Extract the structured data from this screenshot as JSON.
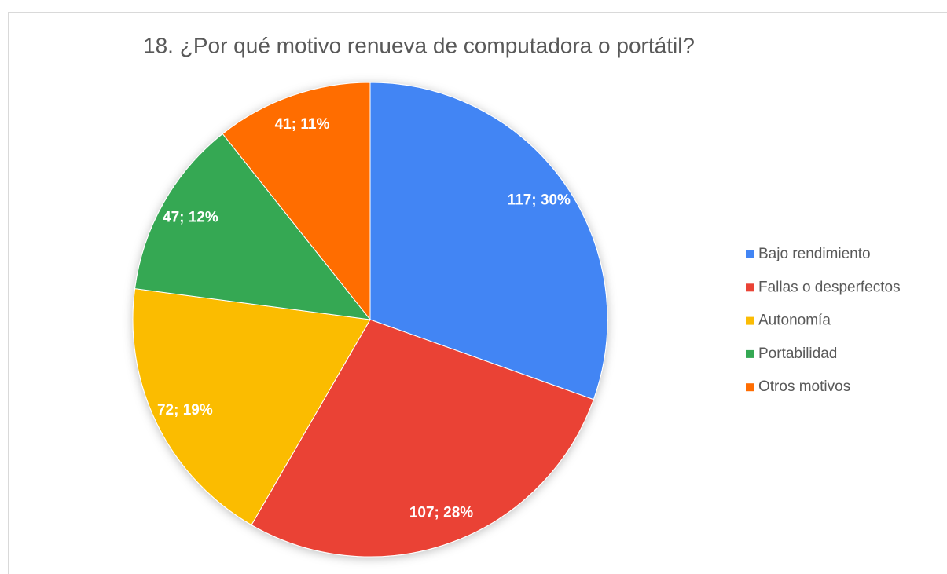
{
  "chart_data": {
    "type": "pie",
    "title": "18. ¿Por qué motivo renueva de computadora o portátil?",
    "categories": [
      "Bajo rendimiento",
      "Fallas o desperfectos",
      "Autonomía",
      "Portabilidad",
      "Otros motivos"
    ],
    "values": [
      117,
      107,
      72,
      47,
      41
    ],
    "value_labels": [
      "117; 30%",
      "107; 28%",
      "72; 19%",
      "47; 12%",
      "41; 11%"
    ],
    "colors": [
      "#4285f4",
      "#ea4335",
      "#fbbc04",
      "#34a853",
      "#ff6d01"
    ],
    "legend": "right"
  }
}
